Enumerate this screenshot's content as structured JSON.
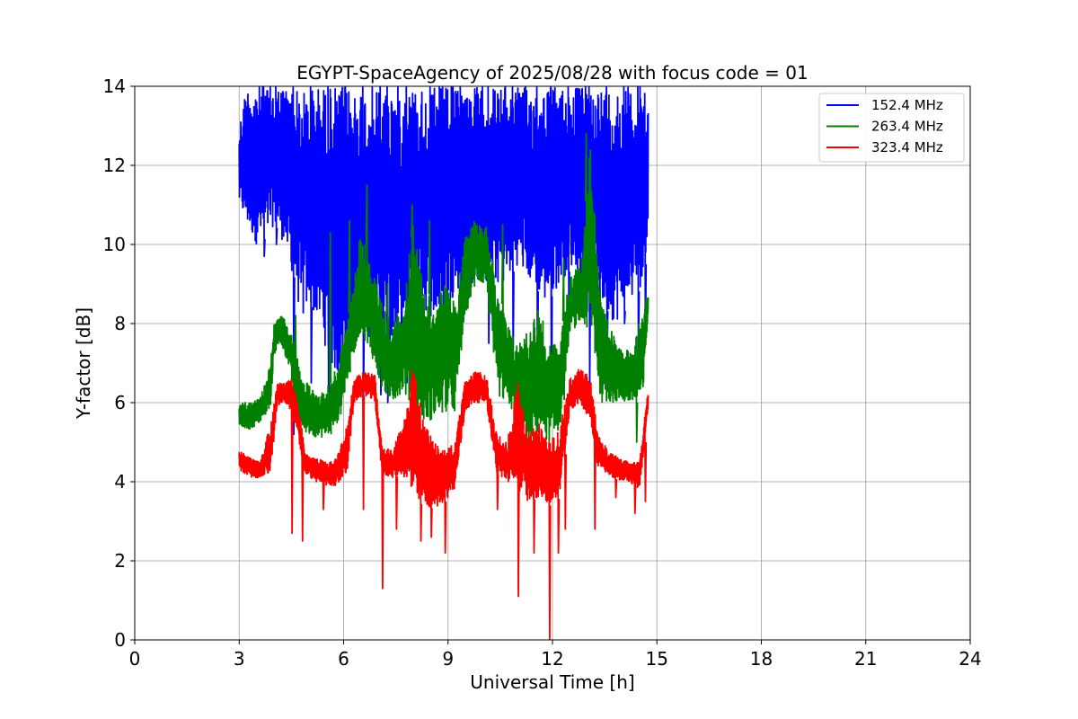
{
  "chart_data": {
    "type": "line",
    "title": "EGYPT-SpaceAgency of 2025/08/28 with focus code = 01",
    "xlabel": "Universal Time [h]",
    "ylabel": "Y-factor [dB]",
    "xlim": [
      0,
      24
    ],
    "ylim": [
      0,
      14
    ],
    "xticks": [
      "0",
      "3",
      "6",
      "9",
      "12",
      "15",
      "18",
      "21",
      "24"
    ],
    "yticks": [
      "0",
      "2",
      "4",
      "6",
      "8",
      "10",
      "12",
      "14"
    ],
    "grid": true,
    "legend_position": "top-right",
    "series": [
      {
        "name": "152.4 MHz",
        "color": "#0000ff",
        "low": [
          [
            3.0,
            11.0
          ],
          [
            3.2,
            10.5
          ],
          [
            3.5,
            10.0
          ],
          [
            3.8,
            10.2
          ],
          [
            4.0,
            10.5
          ],
          [
            4.3,
            10.0
          ],
          [
            4.6,
            9.0
          ],
          [
            4.8,
            8.0
          ],
          [
            5.0,
            8.5
          ],
          [
            5.3,
            8.0
          ],
          [
            5.6,
            7.0
          ],
          [
            5.9,
            6.5
          ],
          [
            6.2,
            7.5
          ],
          [
            6.5,
            8.0
          ],
          [
            6.8,
            7.5
          ],
          [
            7.1,
            7.0
          ],
          [
            7.5,
            7.5
          ],
          [
            7.9,
            8.0
          ],
          [
            8.2,
            8.5
          ],
          [
            8.6,
            8.0
          ],
          [
            9.0,
            8.5
          ],
          [
            9.4,
            9.0
          ],
          [
            9.8,
            9.0
          ],
          [
            10.2,
            9.0
          ],
          [
            10.6,
            9.0
          ],
          [
            11.0,
            9.5
          ],
          [
            11.4,
            9.0
          ],
          [
            11.8,
            8.5
          ],
          [
            12.2,
            9.0
          ],
          [
            12.6,
            9.5
          ],
          [
            13.0,
            9.0
          ],
          [
            13.4,
            8.5
          ],
          [
            13.8,
            8.0
          ],
          [
            14.2,
            8.5
          ],
          [
            14.6,
            9.0
          ],
          [
            14.75,
            10.5
          ]
        ],
        "high": [
          [
            3.0,
            13.0
          ],
          [
            3.2,
            14.0
          ],
          [
            3.5,
            14.0
          ],
          [
            3.8,
            14.0
          ],
          [
            4.0,
            14.0
          ],
          [
            4.3,
            14.0
          ],
          [
            4.6,
            14.0
          ],
          [
            4.8,
            13.8
          ],
          [
            5.0,
            14.0
          ],
          [
            5.3,
            14.0
          ],
          [
            5.6,
            14.0
          ],
          [
            5.9,
            14.0
          ],
          [
            6.2,
            14.0
          ],
          [
            6.5,
            14.0
          ],
          [
            6.8,
            14.0
          ],
          [
            7.1,
            14.0
          ],
          [
            7.5,
            14.0
          ],
          [
            7.9,
            14.0
          ],
          [
            8.2,
            14.0
          ],
          [
            8.6,
            14.0
          ],
          [
            9.0,
            14.0
          ],
          [
            9.4,
            14.0
          ],
          [
            9.8,
            14.0
          ],
          [
            10.2,
            14.0
          ],
          [
            10.6,
            14.0
          ],
          [
            11.0,
            14.0
          ],
          [
            11.4,
            14.0
          ],
          [
            11.8,
            14.0
          ],
          [
            12.2,
            14.0
          ],
          [
            12.6,
            14.0
          ],
          [
            13.0,
            14.0
          ],
          [
            13.4,
            14.0
          ],
          [
            13.8,
            14.0
          ],
          [
            14.2,
            14.0
          ],
          [
            14.6,
            14.0
          ],
          [
            14.75,
            13.5
          ]
        ]
      },
      {
        "name": "263.4 MHz",
        "color": "#008000",
        "low": [
          [
            3.0,
            5.4
          ],
          [
            3.3,
            5.3
          ],
          [
            3.6,
            5.5
          ],
          [
            3.9,
            5.8
          ],
          [
            4.0,
            7.2
          ],
          [
            4.2,
            7.5
          ],
          [
            4.4,
            7.0
          ],
          [
            4.6,
            6.0
          ],
          [
            4.8,
            5.3
          ],
          [
            5.0,
            5.2
          ],
          [
            5.3,
            5.1
          ],
          [
            5.6,
            5.2
          ],
          [
            5.9,
            5.6
          ],
          [
            6.2,
            7.0
          ],
          [
            6.5,
            7.8
          ],
          [
            6.8,
            7.2
          ],
          [
            7.1,
            6.3
          ],
          [
            7.4,
            6.0
          ],
          [
            7.7,
            6.3
          ],
          [
            8.0,
            5.8
          ],
          [
            8.3,
            5.5
          ],
          [
            8.6,
            5.6
          ],
          [
            8.9,
            5.7
          ],
          [
            9.2,
            5.8
          ],
          [
            9.5,
            8.2
          ],
          [
            9.8,
            9.0
          ],
          [
            10.1,
            9.0
          ],
          [
            10.4,
            6.2
          ],
          [
            10.7,
            6.0
          ],
          [
            11.0,
            5.5
          ],
          [
            11.3,
            5.0
          ],
          [
            11.6,
            5.2
          ],
          [
            11.9,
            5.0
          ],
          [
            12.2,
            5.2
          ],
          [
            12.5,
            7.8
          ],
          [
            12.8,
            8.0
          ],
          [
            13.1,
            7.8
          ],
          [
            13.4,
            6.0
          ],
          [
            13.7,
            6.0
          ],
          [
            14.0,
            6.0
          ],
          [
            14.3,
            6.0
          ],
          [
            14.6,
            6.0
          ],
          [
            14.75,
            8.3
          ]
        ],
        "high": [
          [
            3.0,
            6.0
          ],
          [
            3.3,
            6.0
          ],
          [
            3.6,
            6.1
          ],
          [
            3.9,
            7.0
          ],
          [
            4.0,
            8.0
          ],
          [
            4.2,
            8.2
          ],
          [
            4.4,
            8.0
          ],
          [
            4.6,
            7.5
          ],
          [
            4.8,
            6.5
          ],
          [
            5.0,
            6.5
          ],
          [
            5.3,
            6.2
          ],
          [
            5.6,
            6.5
          ],
          [
            5.9,
            7.2
          ],
          [
            6.2,
            8.5
          ],
          [
            6.5,
            10.5
          ],
          [
            6.8,
            9.5
          ],
          [
            7.1,
            8.5
          ],
          [
            7.4,
            8.0
          ],
          [
            7.7,
            8.5
          ],
          [
            8.0,
            10.5
          ],
          [
            8.3,
            9.0
          ],
          [
            8.6,
            8.5
          ],
          [
            8.9,
            9.0
          ],
          [
            9.2,
            8.5
          ],
          [
            9.5,
            10.2
          ],
          [
            9.8,
            10.7
          ],
          [
            10.1,
            10.5
          ],
          [
            10.4,
            9.0
          ],
          [
            10.7,
            8.0
          ],
          [
            11.0,
            7.5
          ],
          [
            11.3,
            7.8
          ],
          [
            11.6,
            8.5
          ],
          [
            11.9,
            7.5
          ],
          [
            12.2,
            7.5
          ],
          [
            12.5,
            9.2
          ],
          [
            12.8,
            9.5
          ],
          [
            13.1,
            12.7
          ],
          [
            13.4,
            8.5
          ],
          [
            13.7,
            7.8
          ],
          [
            14.0,
            7.5
          ],
          [
            14.3,
            7.2
          ],
          [
            14.6,
            8.5
          ],
          [
            14.75,
            8.7
          ]
        ]
      },
      {
        "name": "323.4 MHz",
        "color": "#ff0000",
        "low": [
          [
            3.0,
            4.3
          ],
          [
            3.3,
            4.1
          ],
          [
            3.6,
            4.1
          ],
          [
            3.9,
            4.2
          ],
          [
            4.1,
            5.9
          ],
          [
            4.3,
            6.0
          ],
          [
            4.5,
            5.8
          ],
          [
            4.7,
            5.0
          ],
          [
            4.9,
            4.2
          ],
          [
            5.2,
            4.0
          ],
          [
            5.5,
            3.9
          ],
          [
            5.8,
            3.9
          ],
          [
            6.1,
            4.2
          ],
          [
            6.3,
            6.0
          ],
          [
            6.6,
            6.2
          ],
          [
            6.9,
            6.0
          ],
          [
            7.1,
            4.2
          ],
          [
            7.4,
            4.1
          ],
          [
            7.7,
            4.2
          ],
          [
            8.0,
            3.5
          ],
          [
            8.3,
            3.4
          ],
          [
            8.6,
            3.3
          ],
          [
            8.9,
            3.5
          ],
          [
            9.2,
            3.8
          ],
          [
            9.5,
            5.8
          ],
          [
            9.8,
            6.0
          ],
          [
            10.1,
            6.0
          ],
          [
            10.4,
            4.2
          ],
          [
            10.7,
            4.0
          ],
          [
            11.0,
            3.8
          ],
          [
            11.3,
            3.5
          ],
          [
            11.6,
            3.6
          ],
          [
            11.9,
            3.4
          ],
          [
            12.2,
            3.6
          ],
          [
            12.5,
            5.8
          ],
          [
            12.8,
            6.0
          ],
          [
            13.1,
            5.5
          ],
          [
            13.3,
            4.4
          ],
          [
            13.6,
            4.2
          ],
          [
            13.9,
            4.0
          ],
          [
            14.2,
            4.0
          ],
          [
            14.5,
            3.8
          ],
          [
            14.75,
            5.8
          ]
        ],
        "high": [
          [
            3.0,
            4.8
          ],
          [
            3.3,
            4.6
          ],
          [
            3.6,
            4.5
          ],
          [
            3.9,
            5.5
          ],
          [
            4.1,
            6.5
          ],
          [
            4.3,
            6.5
          ],
          [
            4.5,
            6.6
          ],
          [
            4.7,
            6.0
          ],
          [
            4.9,
            4.7
          ],
          [
            5.2,
            4.6
          ],
          [
            5.5,
            4.5
          ],
          [
            5.8,
            4.6
          ],
          [
            6.1,
            5.5
          ],
          [
            6.3,
            6.6
          ],
          [
            6.6,
            6.8
          ],
          [
            6.9,
            6.7
          ],
          [
            7.1,
            4.9
          ],
          [
            7.4,
            4.8
          ],
          [
            7.7,
            5.5
          ],
          [
            8.0,
            7.0
          ],
          [
            8.3,
            5.5
          ],
          [
            8.6,
            5.0
          ],
          [
            8.9,
            4.8
          ],
          [
            9.2,
            5.0
          ],
          [
            9.5,
            6.6
          ],
          [
            9.8,
            6.8
          ],
          [
            10.1,
            6.7
          ],
          [
            10.4,
            5.2
          ],
          [
            10.7,
            5.0
          ],
          [
            11.0,
            6.5
          ],
          [
            11.3,
            5.2
          ],
          [
            11.6,
            5.5
          ],
          [
            11.9,
            5.0
          ],
          [
            12.2,
            5.3
          ],
          [
            12.5,
            6.6
          ],
          [
            12.8,
            6.9
          ],
          [
            13.1,
            6.6
          ],
          [
            13.3,
            5.2
          ],
          [
            13.6,
            4.8
          ],
          [
            13.9,
            4.6
          ],
          [
            14.2,
            4.5
          ],
          [
            14.5,
            4.5
          ],
          [
            14.75,
            6.4
          ]
        ]
      }
    ],
    "spikes": [
      {
        "series": 0,
        "points": [
          [
            3.7,
            9.7
          ],
          [
            4.05,
            10.0
          ],
          [
            4.55,
            5.2
          ],
          [
            5.05,
            6.5
          ],
          [
            5.55,
            5.7
          ],
          [
            6.05,
            7.5
          ],
          [
            6.55,
            6.0
          ],
          [
            7.05,
            6.2
          ],
          [
            7.25,
            6.0
          ],
          [
            7.8,
            6.5
          ],
          [
            8.75,
            6.2
          ],
          [
            9.35,
            8.0
          ],
          [
            10.15,
            7.5
          ],
          [
            10.85,
            7.0
          ],
          [
            11.55,
            6.0
          ],
          [
            11.95,
            5.7
          ],
          [
            12.45,
            8.5
          ],
          [
            13.05,
            6.5
          ],
          [
            13.55,
            7.0
          ],
          [
            14.05,
            8.0
          ],
          [
            14.45,
            7.0
          ],
          [
            14.65,
            7.5
          ]
        ]
      },
      {
        "series": 1,
        "points": [
          [
            4.6,
            8.2
          ],
          [
            5.6,
            10.3
          ],
          [
            6.15,
            10.6
          ],
          [
            6.65,
            11.5
          ],
          [
            7.25,
            9.0
          ],
          [
            7.95,
            11.0
          ],
          [
            8.45,
            10.6
          ],
          [
            9.15,
            7.6
          ],
          [
            10.55,
            10.5
          ],
          [
            11.25,
            4.4
          ],
          [
            12.3,
            9.6
          ],
          [
            12.95,
            12.8
          ],
          [
            13.7,
            6.6
          ],
          [
            14.4,
            5.0
          ]
        ]
      },
      {
        "series": 2,
        "points": [
          [
            4.5,
            2.7
          ],
          [
            4.8,
            2.5
          ],
          [
            5.4,
            3.3
          ],
          [
            6.55,
            3.3
          ],
          [
            7.1,
            1.3
          ],
          [
            7.5,
            2.8
          ],
          [
            8.2,
            2.5
          ],
          [
            8.5,
            2.6
          ],
          [
            8.9,
            2.2
          ],
          [
            10.4,
            3.3
          ],
          [
            11.0,
            1.1
          ],
          [
            11.45,
            2.2
          ],
          [
            11.9,
            0.0
          ],
          [
            12.15,
            2.2
          ],
          [
            12.35,
            2.8
          ],
          [
            13.2,
            2.8
          ],
          [
            13.8,
            3.6
          ],
          [
            14.35,
            3.2
          ],
          [
            14.65,
            3.5
          ]
        ]
      }
    ]
  }
}
